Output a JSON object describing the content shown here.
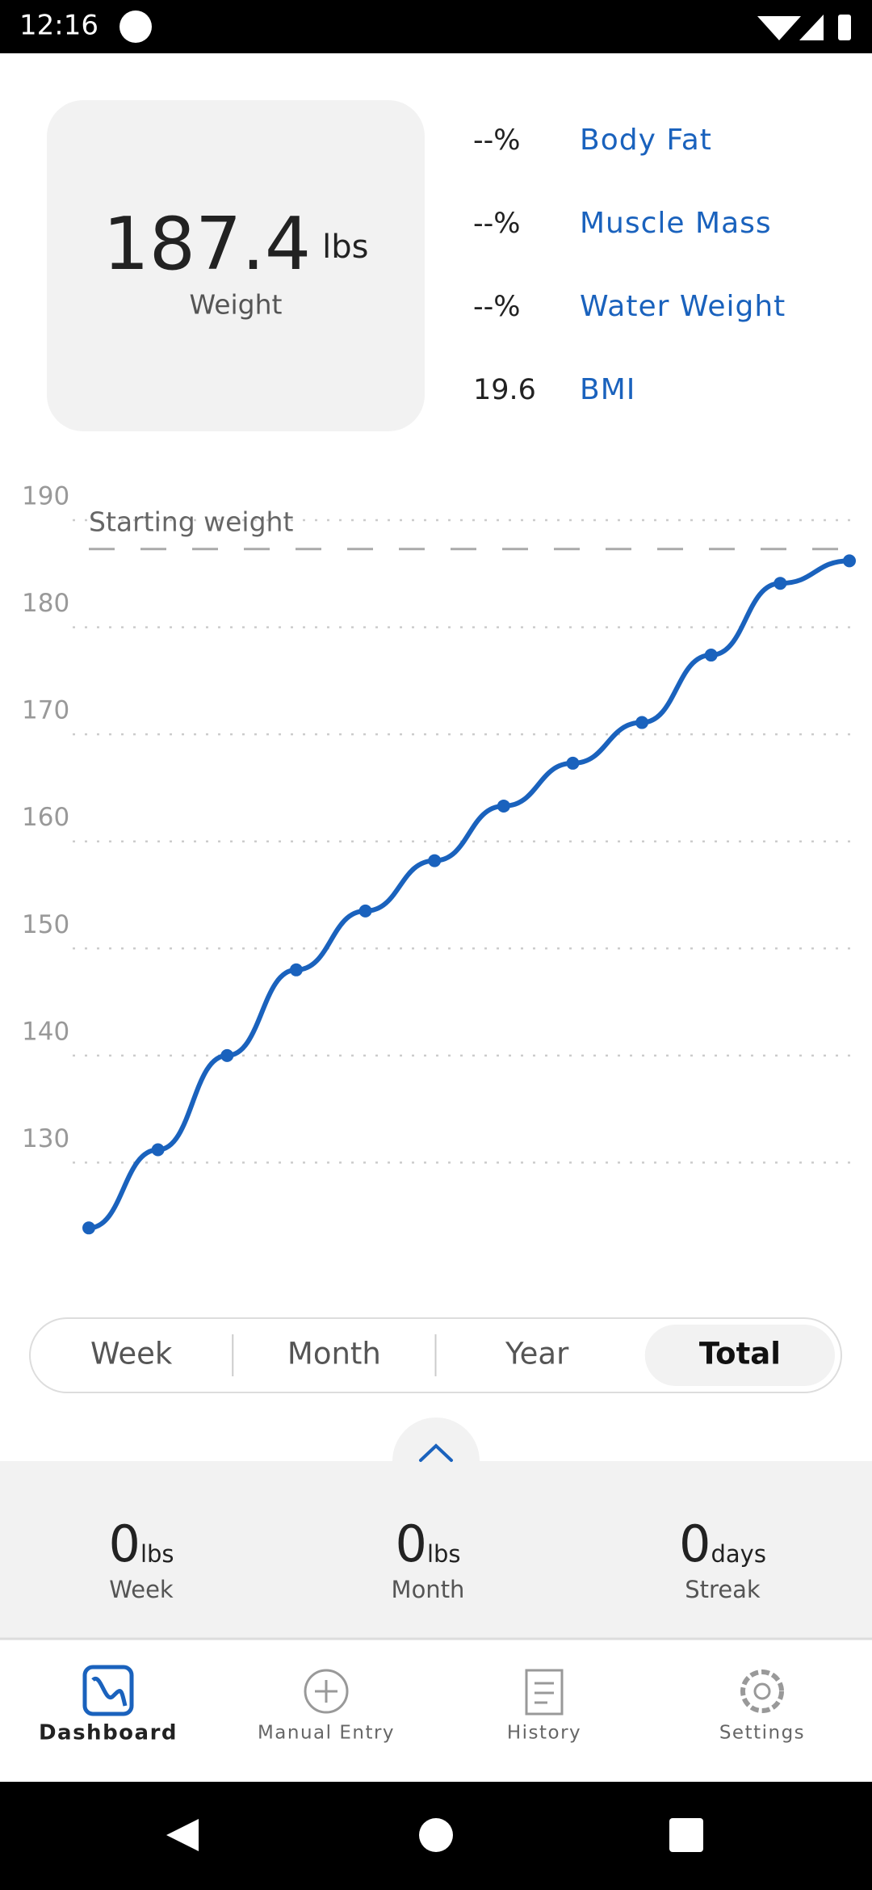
{
  "status_bar": {
    "time": "12:16"
  },
  "summary": {
    "weight": "187.4",
    "unit": "lbs",
    "label": "Weight",
    "metrics": [
      {
        "value": "--%",
        "label": "Body Fat"
      },
      {
        "value": "--%",
        "label": "Muscle Mass"
      },
      {
        "value": "--%",
        "label": "Water Weight"
      },
      {
        "value": "19.6",
        "label": "BMI"
      }
    ]
  },
  "chart_data": {
    "type": "line",
    "categories": [
      null,
      null,
      null,
      null,
      null,
      null,
      null,
      null,
      null,
      null,
      null,
      null
    ],
    "series": [
      {
        "color": "#1a62bd",
        "values": [
          123.9,
          131.2,
          140.0,
          148.0,
          153.5,
          158.2,
          163.3,
          167.3,
          171.1,
          177.4,
          184.1,
          186.2
        ]
      }
    ],
    "ylim": [
      120,
      190
    ],
    "yticks": [
      130,
      140,
      150,
      160,
      170,
      180,
      190
    ],
    "grid": true,
    "reference_line": {
      "label": "Starting weight",
      "value": 187.3
    }
  },
  "range_selector": {
    "options": [
      "Week",
      "Month",
      "Year",
      "Total"
    ],
    "selected": 3
  },
  "stats": [
    {
      "value": "0",
      "unit": "lbs",
      "label": "Week"
    },
    {
      "value": "0",
      "unit": "lbs",
      "label": "Month"
    },
    {
      "value": "0",
      "unit": "days",
      "label": "Streak"
    }
  ],
  "nav": {
    "items": [
      "Dashboard",
      "Manual Entry",
      "History",
      "Settings"
    ],
    "active": 0
  }
}
